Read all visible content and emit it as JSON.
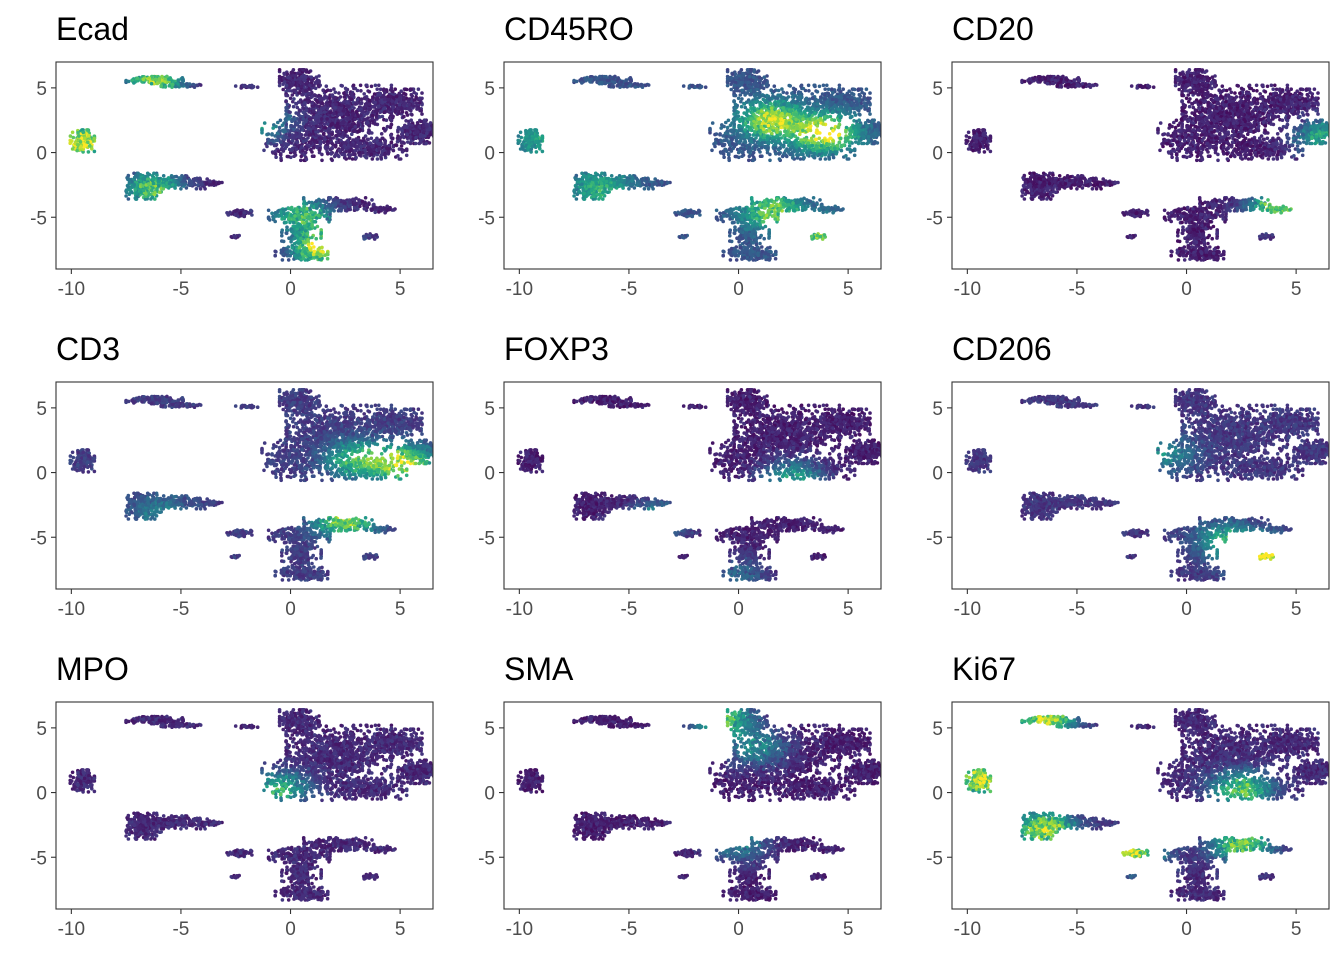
{
  "chart_data": [
    {
      "type": "scatter",
      "title": "Ecad",
      "xlim": [
        -10.7,
        6.5
      ],
      "ylim": [
        -9,
        7
      ],
      "xticks": [
        -10,
        -5,
        0,
        5
      ],
      "yticks": [
        -5,
        0,
        5
      ],
      "xlabel": "",
      "ylabel": "",
      "grid": false,
      "legend": "none",
      "hotspots": [
        {
          "x": -9.5,
          "y": 0.9,
          "value": 0.9
        },
        {
          "x": -6.2,
          "y": 5.6,
          "value": 0.75
        },
        {
          "x": -6.3,
          "y": -2.8,
          "value": 0.65
        },
        {
          "x": 1.5,
          "y": -7.4,
          "value": 0.9
        },
        {
          "x": 0.5,
          "y": -4.8,
          "value": 0.6
        },
        {
          "x": -1.5,
          "y": 2.5,
          "value": 0.5
        }
      ],
      "background_value": 0.05
    },
    {
      "type": "scatter",
      "title": "CD45RO",
      "xlim": [
        -10.7,
        6.5
      ],
      "ylim": [
        -9,
        7
      ],
      "xticks": [
        -10,
        -5,
        0,
        5
      ],
      "yticks": [
        -5,
        0,
        5
      ],
      "xlabel": "",
      "ylabel": "",
      "grid": false,
      "legend": "none",
      "hotspots": [
        {
          "x": 4.0,
          "y": 1.5,
          "value": 0.8
        },
        {
          "x": 1.5,
          "y": 2.5,
          "value": 0.7
        },
        {
          "x": -6.3,
          "y": -2.8,
          "value": 0.4
        },
        {
          "x": 1.5,
          "y": -4.5,
          "value": 0.55
        },
        {
          "x": 4.0,
          "y": -6.5,
          "value": 0.6
        },
        {
          "x": -9.0,
          "y": 1.0,
          "value": 0.35
        }
      ],
      "background_value": 0.2
    },
    {
      "type": "scatter",
      "title": "CD20",
      "xlim": [
        -10.7,
        6.5
      ],
      "ylim": [
        -9,
        7
      ],
      "xticks": [
        -10,
        -5,
        0,
        5
      ],
      "yticks": [
        -5,
        0,
        5
      ],
      "xlabel": "",
      "ylabel": "",
      "grid": false,
      "legend": "none",
      "hotspots": [
        {
          "x": 6.3,
          "y": 1.2,
          "value": 0.55
        },
        {
          "x": 4.2,
          "y": -4.2,
          "value": 0.75
        }
      ],
      "background_value": 0.03
    },
    {
      "type": "scatter",
      "title": "CD3",
      "xlim": [
        -10.7,
        6.5
      ],
      "ylim": [
        -9,
        7
      ],
      "xticks": [
        -10,
        -5,
        0,
        5
      ],
      "yticks": [
        -5,
        0,
        5
      ],
      "xlabel": "",
      "ylabel": "",
      "grid": false,
      "legend": "none",
      "hotspots": [
        {
          "x": 5.2,
          "y": 0.7,
          "value": 0.75
        },
        {
          "x": 3.0,
          "y": 1.0,
          "value": 0.55
        },
        {
          "x": 2.5,
          "y": -3.6,
          "value": 0.7
        },
        {
          "x": -6.0,
          "y": -3.0,
          "value": 0.25
        }
      ],
      "background_value": 0.12
    },
    {
      "type": "scatter",
      "title": "FOXP3",
      "xlim": [
        -10.7,
        6.5
      ],
      "ylim": [
        -9,
        7
      ],
      "xticks": [
        -10,
        -5,
        0,
        5
      ],
      "yticks": [
        -5,
        0,
        5
      ],
      "xlabel": "",
      "ylabel": "",
      "grid": false,
      "legend": "none",
      "hotspots": [
        {
          "x": 2.5,
          "y": -0.5,
          "value": 0.5
        },
        {
          "x": -3.6,
          "y": -3.6,
          "value": 0.45
        },
        {
          "x": 0.0,
          "y": -7.8,
          "value": 0.25
        }
      ],
      "background_value": 0.03
    },
    {
      "type": "scatter",
      "title": "CD206",
      "xlim": [
        -10.7,
        6.5
      ],
      "ylim": [
        -9,
        7
      ],
      "xticks": [
        -10,
        -5,
        0,
        5
      ],
      "yticks": [
        -5,
        0,
        5
      ],
      "xlabel": "",
      "ylabel": "",
      "grid": false,
      "legend": "none",
      "hotspots": [
        {
          "x": 3.6,
          "y": -6.5,
          "value": 0.9
        },
        {
          "x": 1.8,
          "y": -5.2,
          "value": 0.45
        },
        {
          "x": -1.0,
          "y": 1.5,
          "value": 0.35
        }
      ],
      "background_value": 0.1
    },
    {
      "type": "scatter",
      "title": "MPO",
      "xlim": [
        -10.7,
        6.5
      ],
      "ylim": [
        -9,
        7
      ],
      "xticks": [
        -10,
        -5,
        0,
        5
      ],
      "yticks": [
        -5,
        0,
        5
      ],
      "xlabel": "",
      "ylabel": "",
      "grid": false,
      "legend": "none",
      "hotspots": [
        {
          "x": -0.5,
          "y": 0.2,
          "value": 0.55
        }
      ],
      "background_value": 0.06
    },
    {
      "type": "scatter",
      "title": "SMA",
      "xlim": [
        -10.7,
        6.5
      ],
      "ylim": [
        -9,
        7
      ],
      "xticks": [
        -10,
        -5,
        0,
        5
      ],
      "yticks": [
        -5,
        0,
        5
      ],
      "xlabel": "",
      "ylabel": "",
      "grid": false,
      "legend": "none",
      "hotspots": [
        {
          "x": -0.8,
          "y": 5.8,
          "value": 0.7
        },
        {
          "x": 0.8,
          "y": 3.5,
          "value": 0.4
        },
        {
          "x": 0.0,
          "y": -4.0,
          "value": 0.35
        }
      ],
      "background_value": 0.03
    },
    {
      "type": "scatter",
      "title": "Ki67",
      "xlim": [
        -10.7,
        6.5
      ],
      "ylim": [
        -9,
        7
      ],
      "xticks": [
        -10,
        -5,
        0,
        5
      ],
      "yticks": [
        -5,
        0,
        5
      ],
      "xlabel": "",
      "ylabel": "",
      "grid": false,
      "legend": "none",
      "hotspots": [
        {
          "x": -9.3,
          "y": 1.0,
          "value": 0.85
        },
        {
          "x": -6.5,
          "y": 5.6,
          "value": 0.8
        },
        {
          "x": -6.5,
          "y": -2.8,
          "value": 0.8
        },
        {
          "x": -2.5,
          "y": -4.7,
          "value": 0.8
        },
        {
          "x": 2.5,
          "y": -4.0,
          "value": 0.7
        },
        {
          "x": 2.5,
          "y": 0.2,
          "value": 0.65
        }
      ],
      "background_value": 0.06
    }
  ],
  "colors": {
    "colormap": "viridis",
    "stops": [
      "#440154",
      "#46327e",
      "#365c8d",
      "#277f8e",
      "#1fa187",
      "#4ac16d",
      "#9fda3a",
      "#fde725"
    ],
    "frame": "#333333",
    "tick_label": "#4d4d4d",
    "title": "#000000"
  }
}
